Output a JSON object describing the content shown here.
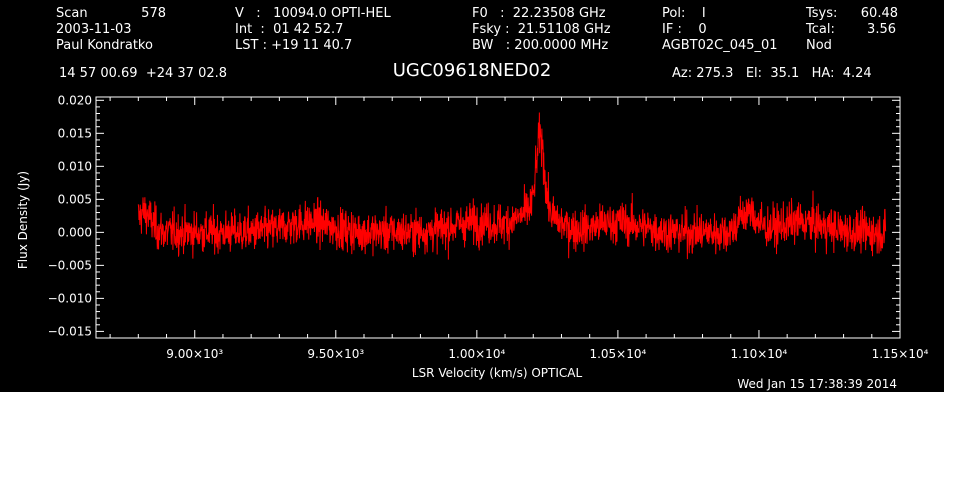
{
  "header": {
    "col1": {
      "scan_label": "Scan",
      "scan_value": "578",
      "date": "2003-11-03",
      "observer": "Paul Kondratko"
    },
    "col2": {
      "v_line": "V   :   10094.0 OPTI-HEL",
      "int_line": "Int  :  01 42 52.7",
      "lst_line": "LST : +19 11 40.7"
    },
    "col3": {
      "f0_line": "F0   :  22.23508 GHz",
      "fsky_line": "Fsky :  21.51108 GHz",
      "bw_line": "BW   : 200.0000 MHz"
    },
    "col4": {
      "pol_line": "Pol:    I",
      "if_line": "IF :    0",
      "project": "AGBT02C_045_01"
    },
    "col5": {
      "tsys_label": "Tsys:",
      "tsys_value": "60.48",
      "tcal_label": "Tcal:",
      "tcal_value": "3.56",
      "mode": "Nod"
    },
    "coords": "14 57 00.69  +24 37 02.8",
    "source": "UGC09618NED02",
    "pointing": "Az: 275.3   El:  35.1   HA:  4.24",
    "timestamp": "Wed Jan 15 17:38:39 2014"
  },
  "chart_data": {
    "type": "line",
    "title": "UGC09618NED02",
    "xlabel": "LSR Velocity (km/s) OPTICAL",
    "ylabel": "Flux Density (Jy)",
    "xlim": [
      8650,
      11500
    ],
    "ylim": [
      -0.016,
      0.0205
    ],
    "x_ticks": [
      9000,
      9500,
      10000,
      10500,
      11000,
      11500
    ],
    "x_tick_labels": [
      "9.00×10³",
      "9.50×10³",
      "1.00×10⁴",
      "1.05×10⁴",
      "1.10×10⁴",
      "1.15×10⁴"
    ],
    "y_ticks": [
      0.02,
      0.015,
      0.01,
      0.005,
      0.0,
      -0.005,
      -0.01,
      -0.015
    ],
    "y_tick_labels": [
      "0.020",
      "0.015",
      "0.010",
      "0.005",
      "0.000",
      "−0.005",
      "−0.010",
      "−0.015"
    ],
    "grid": false,
    "line_color": "#ff0000",
    "series": [
      {
        "x_start": 8800,
        "x_end": 11450,
        "n_points": 2400,
        "noise_rms": 0.0022,
        "baseline_ripples": [
          {
            "center": 8820,
            "width": 25,
            "height": 0.003
          },
          {
            "center": 9400,
            "width": 80,
            "height": 0.0015
          },
          {
            "center": 10000,
            "width": 90,
            "height": 0.0015
          },
          {
            "center": 10500,
            "width": 80,
            "height": 0.0015
          },
          {
            "center": 10960,
            "width": 30,
            "height": 0.003
          },
          {
            "center": 11150,
            "width": 80,
            "height": 0.0015
          }
        ],
        "emission_lines": [
          {
            "center": 10225,
            "width": 14,
            "height": 0.011
          },
          {
            "center": 10215,
            "width": 60,
            "height": 0.0035
          }
        ]
      }
    ]
  }
}
